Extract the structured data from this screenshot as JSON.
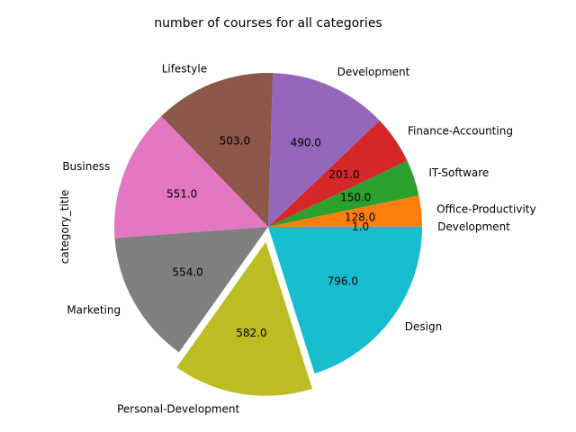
{
  "chart_data": {
    "type": "pie",
    "title": "number of courses for all categories",
    "ylabel": "category_title",
    "value_format": "one-decimal",
    "explode": "Personal-Development",
    "start_angle": 0,
    "direction": "counterclockwise",
    "slices": [
      {
        "label": "Development",
        "value": 1,
        "color": "#1f77b4"
      },
      {
        "label": "Office-Productivity",
        "value": 128,
        "color": "#ff7f0e"
      },
      {
        "label": "IT-Software",
        "value": 150,
        "color": "#2ca02c"
      },
      {
        "label": "Finance-Accounting",
        "value": 201,
        "color": "#d62728"
      },
      {
        "label": "Development",
        "value": 490,
        "color": "#9467bd"
      },
      {
        "label": "Lifestyle",
        "value": 503,
        "color": "#8c564b"
      },
      {
        "label": "Business",
        "value": 551,
        "color": "#e377c2"
      },
      {
        "label": "Marketing",
        "value": 554,
        "color": "#7f7f7f"
      },
      {
        "label": "Personal-Development",
        "value": 582,
        "color": "#bcbd22"
      },
      {
        "label": "Design",
        "value": 796,
        "color": "#17becf"
      }
    ]
  }
}
